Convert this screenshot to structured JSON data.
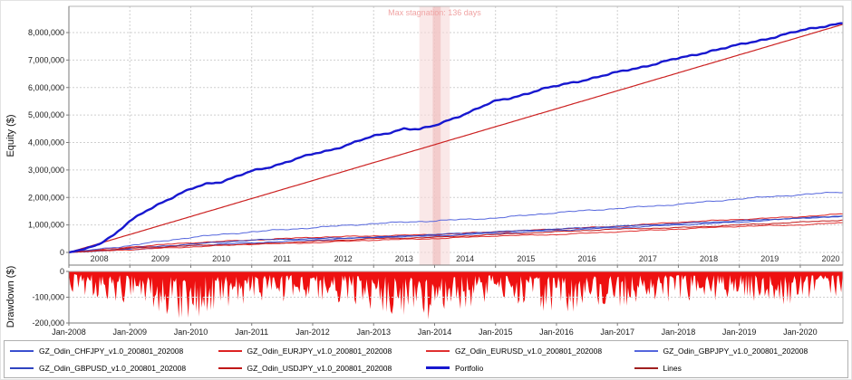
{
  "axes": {
    "equity_label": "Equity ($)",
    "drawdown_label": "Drawdown ($)"
  },
  "chart_data": [
    {
      "type": "line",
      "title": "",
      "ylabel": "Equity ($)",
      "xlabel": "",
      "xlim": [
        2008,
        2020.7
      ],
      "ylim": [
        -460000,
        8900000
      ],
      "grid": true,
      "legend_position": "bottom",
      "yticks": [
        0,
        1000000,
        2000000,
        3000000,
        4000000,
        5000000,
        6000000,
        7000000,
        8000000
      ],
      "ytick_labels": [
        "0",
        "1,000,000",
        "2,000,000",
        "3,000,000",
        "4,000,000",
        "5,000,000",
        "6,000,000",
        "7,000,000",
        "8,000,000"
      ],
      "year_gridlines": [
        2008,
        2009,
        2010,
        2011,
        2012,
        2013,
        2014,
        2015,
        2016,
        2017,
        2018,
        2019,
        2020
      ],
      "inner_year_labels": [
        "2008",
        "2009",
        "2010",
        "2011",
        "2012",
        "2013",
        "2014",
        "2015",
        "2016",
        "2017",
        "2018",
        "2019",
        "2020"
      ],
      "annotation": {
        "label": "Max stagnation: 136 days",
        "x_start": 2013.75,
        "x_end": 2014.25,
        "x_inner_start": 2013.97,
        "x_inner_end": 2014.1,
        "band_fill": "#f6d8d8",
        "inner_fill": "#efc0c0",
        "text_color": "#f0a4a4"
      },
      "series": [
        {
          "name": "GZ_Odin_CHFJPY_v1.0_200801_202008",
          "color": "#3a4fd0",
          "width": 1,
          "noise_amp": 22000,
          "seed": 1,
          "x": [
            2008,
            2009,
            2010,
            2011,
            2012,
            2013,
            2014,
            2015,
            2016,
            2017,
            2018,
            2019,
            2020,
            2020.7
          ],
          "y": [
            0,
            100000,
            250000,
            350000,
            450000,
            550000,
            600000,
            700000,
            800000,
            900000,
            1000000,
            1100000,
            1250000,
            1300000
          ]
        },
        {
          "name": "GZ_Odin_EURJPY_v1.0_200801_202008",
          "color": "#dd2222",
          "width": 1,
          "noise_amp": 22000,
          "seed": 2,
          "x": [
            2008,
            2009,
            2010,
            2011,
            2012,
            2013,
            2014,
            2015,
            2016,
            2017,
            2018,
            2019,
            2020,
            2020.7
          ],
          "y": [
            0,
            200000,
            350000,
            450000,
            550000,
            600000,
            650000,
            750000,
            850000,
            950000,
            1100000,
            1200000,
            1300000,
            1400000
          ]
        },
        {
          "name": "GZ_Odin_EURUSD_v1.0_200801_202008",
          "color": "#e03030",
          "width": 1,
          "noise_amp": 20000,
          "seed": 3,
          "x": [
            2008,
            2009,
            2010,
            2011,
            2012,
            2013,
            2014,
            2015,
            2016,
            2017,
            2018,
            2019,
            2020,
            2020.7
          ],
          "y": [
            0,
            100000,
            200000,
            300000,
            350000,
            450000,
            500000,
            600000,
            650000,
            750000,
            850000,
            950000,
            1000000,
            1080000
          ]
        },
        {
          "name": "GZ_Odin_GBPJPY_v1.0_200801_202008",
          "color": "#5566dd",
          "width": 1,
          "noise_amp": 30000,
          "seed": 4,
          "x": [
            2008,
            2009,
            2010,
            2011,
            2012,
            2013,
            2014,
            2015,
            2016,
            2017,
            2018,
            2019,
            2020,
            2020.7
          ],
          "y": [
            0,
            250000,
            550000,
            750000,
            900000,
            1050000,
            1150000,
            1250000,
            1450000,
            1600000,
            1750000,
            1950000,
            2100000,
            2200000
          ]
        },
        {
          "name": "GZ_Odin_GBPUSD_v1.0_200801_202008",
          "color": "#2f44c0",
          "width": 1,
          "noise_amp": 20000,
          "seed": 5,
          "x": [
            2008,
            2009,
            2010,
            2011,
            2012,
            2013,
            2014,
            2015,
            2016,
            2017,
            2018,
            2019,
            2020,
            2020.7
          ],
          "y": [
            0,
            150000,
            300000,
            450000,
            500000,
            550000,
            650000,
            750000,
            850000,
            950000,
            1050000,
            1150000,
            1250000,
            1330000
          ]
        },
        {
          "name": "GZ_Odin_USDJPY_v1.0_200801_202008",
          "color": "#c01818",
          "width": 1,
          "noise_amp": 20000,
          "seed": 6,
          "x": [
            2008,
            2009,
            2010,
            2011,
            2012,
            2013,
            2014,
            2015,
            2016,
            2017,
            2018,
            2019,
            2020,
            2020.7
          ],
          "y": [
            0,
            150000,
            250000,
            300000,
            400000,
            500000,
            550000,
            650000,
            750000,
            850000,
            900000,
            1000000,
            1100000,
            1180000
          ]
        },
        {
          "name": "Lines",
          "color": "#cc2222",
          "width": 1.2,
          "noise_amp": 0,
          "seed": 0,
          "x": [
            2008,
            2020.7
          ],
          "y": [
            0,
            8300000
          ]
        },
        {
          "name": "Portfolio",
          "color": "#1717cf",
          "width": 2.4,
          "noise_amp": 42000,
          "seed": 7,
          "x": [
            2008,
            2008.25,
            2008.5,
            2008.75,
            2009,
            2009.25,
            2009.5,
            2009.75,
            2010,
            2010.25,
            2010.5,
            2010.75,
            2011,
            2011.25,
            2011.5,
            2011.75,
            2012,
            2012.25,
            2012.5,
            2012.75,
            2013,
            2013.25,
            2013.5,
            2013.75,
            2014,
            2014.25,
            2014.5,
            2014.75,
            2015,
            2015.25,
            2015.5,
            2015.75,
            2016,
            2016.25,
            2016.5,
            2016.75,
            2017,
            2017.25,
            2017.5,
            2017.75,
            2018,
            2018.25,
            2018.5,
            2018.75,
            2019,
            2019.25,
            2019.5,
            2019.75,
            2020,
            2020.25,
            2020.5,
            2020.7
          ],
          "y": [
            0,
            120000,
            320000,
            650000,
            1120000,
            1500000,
            1800000,
            2050000,
            2300000,
            2500000,
            2580000,
            2760000,
            2950000,
            3080000,
            3250000,
            3420000,
            3570000,
            3700000,
            3870000,
            4060000,
            4220000,
            4350000,
            4520000,
            4480000,
            4600000,
            4830000,
            5050000,
            5280000,
            5500000,
            5620000,
            5780000,
            5930000,
            6050000,
            6180000,
            6300000,
            6420000,
            6550000,
            6680000,
            6800000,
            6930000,
            7060000,
            7180000,
            7320000,
            7430000,
            7550000,
            7680000,
            7800000,
            7930000,
            8060000,
            8180000,
            8280000,
            8350000
          ]
        }
      ]
    },
    {
      "type": "area",
      "ylabel": "Drawdown ($)",
      "ylim": [
        -200000,
        0
      ],
      "yticks": [
        0,
        -100000,
        -200000
      ],
      "ytick_labels": [
        "0",
        "-100,000",
        "-200,000"
      ],
      "xtick_years": [
        2008,
        2009,
        2010,
        2011,
        2012,
        2013,
        2014,
        2015,
        2016,
        2017,
        2018,
        2019,
        2020
      ],
      "xtick_labels": [
        "Jan-2008",
        "Jan-2009",
        "Jan-2010",
        "Jan-2011",
        "Jan-2012",
        "Jan-2013",
        "Jan-2014",
        "Jan-2015",
        "Jan-2016",
        "Jan-2017",
        "Jan-2018",
        "Jan-2019",
        "Jan-2020"
      ],
      "fill_color": "#ee1111",
      "envelope_years": [
        2008,
        2009,
        2010,
        2011,
        2012,
        2013,
        2014,
        2015,
        2016,
        2017,
        2018,
        2019,
        2020,
        2020.7
      ],
      "envelope_depth": [
        80000,
        130000,
        195000,
        120000,
        120000,
        150000,
        200000,
        110000,
        175000,
        140000,
        115000,
        125000,
        135000,
        120000
      ],
      "seed": 1234
    }
  ],
  "legend": {
    "border_color": "#b0b0b0",
    "items": [
      {
        "label": "GZ_Odin_CHFJPY_v1.0_200801_202008",
        "color": "#3a4fd0",
        "thick": false
      },
      {
        "label": "GZ_Odin_EURJPY_v1.0_200801_202008",
        "color": "#dd2222",
        "thick": false
      },
      {
        "label": "GZ_Odin_EURUSD_v1.0_200801_202008",
        "color": "#e03030",
        "thick": false
      },
      {
        "label": "GZ_Odin_GBPJPY_v1.0_200801_202008",
        "color": "#5566dd",
        "thick": false
      },
      {
        "label": "GZ_Odin_GBPUSD_v1.0_200801_202008",
        "color": "#2f44c0",
        "thick": false
      },
      {
        "label": "GZ_Odin_USDJPY_v1.0_200801_202008",
        "color": "#c01818",
        "thick": false
      },
      {
        "label": "Portfolio",
        "color": "#1717cf",
        "thick": true
      },
      {
        "label": "Lines",
        "color": "#a02020",
        "thick": false
      }
    ]
  }
}
